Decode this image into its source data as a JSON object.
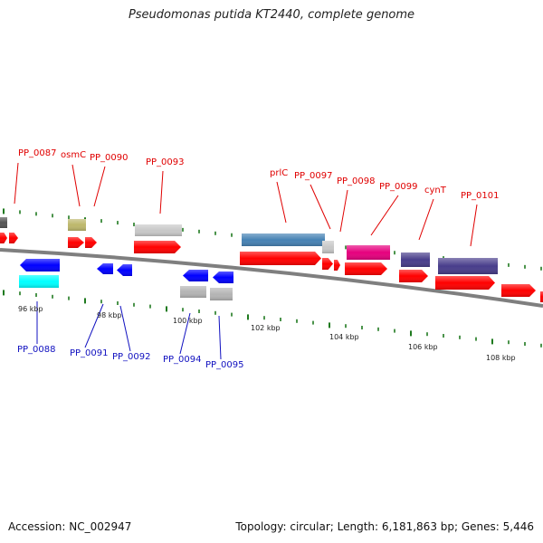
{
  "title": "Pseudomonas putida KT2440, complete genome",
  "footer": {
    "accession": "Accession: NC_002947",
    "summary": "Topology: circular; Length: 6,181,863 bp; Genes: 5,446"
  },
  "colors": {
    "backbone": "#8a8a8a",
    "tick": "#1f7a1f",
    "forward_gene": "#ff0000",
    "reverse_gene": "#0000ff",
    "forward_label": "#e00000",
    "reverse_label": "#1010c0"
  },
  "scale_labels": [
    "96 kbp",
    "98 kbp",
    "100 kbp",
    "102 kbp",
    "104 kbp",
    "106 kbp",
    "108 kbp"
  ],
  "forward_labels": [
    "PP_0087",
    "osmC",
    "PP_0090",
    "PP_0093",
    "prlC",
    "PP_0097",
    "PP_0098",
    "PP_0099",
    "cynT",
    "PP_0101"
  ],
  "reverse_labels": [
    "PP_0088",
    "PP_0091",
    "PP_0092",
    "PP_0094",
    "PP_0095"
  ]
}
